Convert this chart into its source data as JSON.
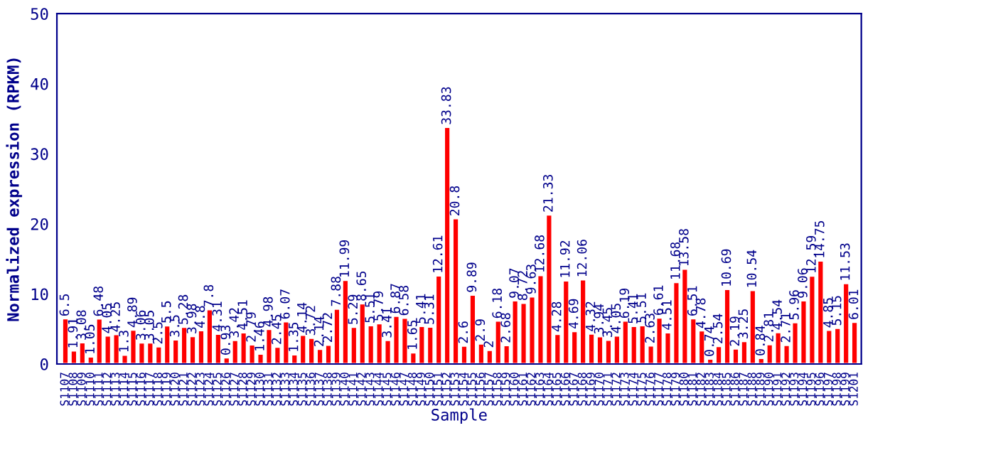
{
  "chart_data": {
    "type": "bar",
    "xlabel": "Sample",
    "ylabel": "Normalized expression (RPKM)",
    "categories": [
      "S1107",
      "S1108",
      "S1109",
      "S1110",
      "S1111",
      "S1112",
      "S1113",
      "S1114",
      "S1115",
      "S1116",
      "S1117",
      "S1118",
      "S1119",
      "S1120",
      "S1121",
      "S1122",
      "S1123",
      "S1124",
      "S1125",
      "S1126",
      "S1127",
      "S1128",
      "S1129",
      "S1130",
      "S1131",
      "S1132",
      "S1133",
      "S1134",
      "S1135",
      "S1136",
      "S1137",
      "S1138",
      "S1139",
      "S1140",
      "S1141",
      "S1142",
      "S1143",
      "S1144",
      "S1145",
      "S1146",
      "S1147",
      "S1148",
      "S1149",
      "S1150",
      "S1151",
      "S1152",
      "S1153",
      "S1154",
      "S1155",
      "S1156",
      "S1157",
      "S1158",
      "S1159",
      "S1160",
      "S1161",
      "S1162",
      "S1163",
      "S1164",
      "S1165",
      "S1166",
      "S1167",
      "S1168",
      "S1169",
      "S1170",
      "S1171",
      "S1172",
      "S1173",
      "S1174",
      "S1175",
      "S1176",
      "S1177",
      "S1178",
      "S1179",
      "S1180",
      "S1181",
      "S1182",
      "S1183",
      "S1184",
      "S1185",
      "S1186",
      "S1187",
      "S1188",
      "S1189",
      "S1190",
      "S1191",
      "S1192",
      "S1193",
      "S1194",
      "S1195",
      "S1196",
      "S1197",
      "S1198",
      "S1199",
      "S1201"
    ],
    "values": [
      6.5,
      1.91,
      3.08,
      1.05,
      6.48,
      4.05,
      4.25,
      1.3,
      4.89,
      3.06,
      3.05,
      2.5,
      5.5,
      3.5,
      5.28,
      3.98,
      4.8,
      7.8,
      4.31,
      0.93,
      3.42,
      4.51,
      2.79,
      1.46,
      4.98,
      2.45,
      6.07,
      1.35,
      4.14,
      3.72,
      2.14,
      2.72,
      7.88,
      11.99,
      5.29,
      8.65,
      5.51,
      5.79,
      3.41,
      6.87,
      6.58,
      1.65,
      5.41,
      5.31,
      12.61,
      33.83,
      20.8,
      2.6,
      9.89,
      2.9,
      2,
      6.18,
      2.68,
      9.07,
      8.72,
      9.63,
      12.68,
      21.33,
      4.28,
      11.92,
      4.69,
      12.06,
      4.32,
      3.94,
      3.45,
      4.05,
      6.19,
      5.41,
      5.51,
      2.63,
      6.61,
      4.51,
      11.68,
      13.58,
      6.51,
      4.78,
      0.74,
      2.54,
      10.69,
      2.19,
      3.25,
      10.54,
      0.84,
      2.81,
      4.54,
      2.71,
      5.96,
      9.06,
      12.59,
      14.75,
      4.85,
      5.15,
      11.53,
      6.01
    ],
    "color": "#ff0000",
    "data_labels": true,
    "ylim": [
      0,
      50
    ],
    "yticks": [
      0,
      10,
      20,
      30,
      40,
      50
    ],
    "grid": false,
    "legend": false
  }
}
